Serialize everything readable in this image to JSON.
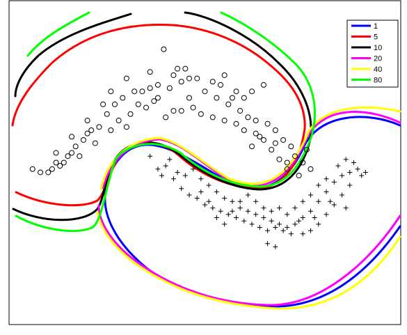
{
  "chart_data": {
    "type": "scatter",
    "title": "",
    "xlabel": "",
    "ylabel": "",
    "xlim": [
      0,
      1
    ],
    "ylim": [
      0,
      1
    ],
    "grid": false,
    "legend_position": "top-right",
    "legend": [
      {
        "name": "1",
        "color": "#0000ff"
      },
      {
        "name": "5",
        "color": "#ff0000"
      },
      {
        "name": "10",
        "color": "#000000"
      },
      {
        "name": "20",
        "color": "#ff00ff"
      },
      {
        "name": "40",
        "color": "#ffff00"
      },
      {
        "name": "80",
        "color": "#00ff00"
      }
    ],
    "points_circle": [
      [
        0.395,
        0.85
      ],
      [
        0.36,
        0.78
      ],
      [
        0.42,
        0.77
      ],
      [
        0.44,
        0.75
      ],
      [
        0.38,
        0.74
      ],
      [
        0.36,
        0.73
      ],
      [
        0.34,
        0.72
      ],
      [
        0.41,
        0.73
      ],
      [
        0.45,
        0.79
      ],
      [
        0.48,
        0.76
      ],
      [
        0.52,
        0.75
      ],
      [
        0.55,
        0.77
      ],
      [
        0.58,
        0.72
      ],
      [
        0.6,
        0.7
      ],
      [
        0.62,
        0.72
      ],
      [
        0.65,
        0.74
      ],
      [
        0.3,
        0.76
      ],
      [
        0.32,
        0.72
      ],
      [
        0.29,
        0.7
      ],
      [
        0.27,
        0.68
      ],
      [
        0.25,
        0.65
      ],
      [
        0.23,
        0.61
      ],
      [
        0.21,
        0.6
      ],
      [
        0.19,
        0.57
      ],
      [
        0.17,
        0.55
      ],
      [
        0.16,
        0.53
      ],
      [
        0.18,
        0.52
      ],
      [
        0.14,
        0.5
      ],
      [
        0.12,
        0.5
      ],
      [
        0.11,
        0.48
      ],
      [
        0.1,
        0.47
      ],
      [
        0.08,
        0.47
      ],
      [
        0.06,
        0.48
      ],
      [
        0.12,
        0.53
      ],
      [
        0.16,
        0.58
      ],
      [
        0.2,
        0.63
      ],
      [
        0.24,
        0.68
      ],
      [
        0.26,
        0.72
      ],
      [
        0.33,
        0.68
      ],
      [
        0.31,
        0.65
      ],
      [
        0.28,
        0.63
      ],
      [
        0.35,
        0.67
      ],
      [
        0.4,
        0.64
      ],
      [
        0.46,
        0.7
      ],
      [
        0.5,
        0.72
      ],
      [
        0.53,
        0.7
      ],
      [
        0.56,
        0.68
      ],
      [
        0.59,
        0.66
      ],
      [
        0.61,
        0.64
      ],
      [
        0.63,
        0.63
      ],
      [
        0.66,
        0.62
      ],
      [
        0.68,
        0.6
      ],
      [
        0.7,
        0.57
      ],
      [
        0.72,
        0.55
      ],
      [
        0.73,
        0.52
      ],
      [
        0.75,
        0.5
      ],
      [
        0.77,
        0.48
      ],
      [
        0.74,
        0.46
      ],
      [
        0.71,
        0.48
      ],
      [
        0.69,
        0.51
      ],
      [
        0.67,
        0.54
      ],
      [
        0.65,
        0.57
      ],
      [
        0.63,
        0.59
      ],
      [
        0.6,
        0.6
      ],
      [
        0.58,
        0.62
      ],
      [
        0.55,
        0.63
      ],
      [
        0.52,
        0.64
      ],
      [
        0.49,
        0.65
      ],
      [
        0.47,
        0.67
      ],
      [
        0.44,
        0.66
      ],
      [
        0.42,
        0.66
      ],
      [
        0.38,
        0.7
      ],
      [
        0.37,
        0.69
      ],
      [
        0.22,
        0.56
      ],
      [
        0.15,
        0.52
      ],
      [
        0.13,
        0.49
      ],
      [
        0.2,
        0.59
      ],
      [
        0.26,
        0.6
      ],
      [
        0.3,
        0.61
      ],
      [
        0.43,
        0.79
      ],
      [
        0.46,
        0.76
      ],
      [
        0.54,
        0.74
      ],
      [
        0.57,
        0.7
      ],
      [
        0.64,
        0.58
      ],
      [
        0.68,
        0.56
      ],
      [
        0.71,
        0.5
      ],
      [
        0.76,
        0.54
      ],
      [
        0.62,
        0.55
      ]
    ],
    "points_plus": [
      [
        0.36,
        0.52
      ],
      [
        0.38,
        0.48
      ],
      [
        0.41,
        0.51
      ],
      [
        0.43,
        0.47
      ],
      [
        0.45,
        0.46
      ],
      [
        0.47,
        0.48
      ],
      [
        0.49,
        0.45
      ],
      [
        0.51,
        0.43
      ],
      [
        0.53,
        0.41
      ],
      [
        0.55,
        0.39
      ],
      [
        0.57,
        0.38
      ],
      [
        0.59,
        0.36
      ],
      [
        0.61,
        0.35
      ],
      [
        0.63,
        0.34
      ],
      [
        0.65,
        0.33
      ],
      [
        0.67,
        0.32
      ],
      [
        0.69,
        0.31
      ],
      [
        0.71,
        0.3
      ],
      [
        0.73,
        0.31
      ],
      [
        0.75,
        0.33
      ],
      [
        0.77,
        0.35
      ],
      [
        0.79,
        0.38
      ],
      [
        0.81,
        0.41
      ],
      [
        0.83,
        0.44
      ],
      [
        0.85,
        0.46
      ],
      [
        0.87,
        0.47
      ],
      [
        0.89,
        0.48
      ],
      [
        0.91,
        0.47
      ],
      [
        0.87,
        0.43
      ],
      [
        0.85,
        0.4
      ],
      [
        0.83,
        0.37
      ],
      [
        0.81,
        0.34
      ],
      [
        0.79,
        0.31
      ],
      [
        0.77,
        0.29
      ],
      [
        0.75,
        0.28
      ],
      [
        0.72,
        0.28
      ],
      [
        0.7,
        0.29
      ],
      [
        0.68,
        0.3
      ],
      [
        0.66,
        0.29
      ],
      [
        0.64,
        0.3
      ],
      [
        0.62,
        0.31
      ],
      [
        0.6,
        0.32
      ],
      [
        0.58,
        0.33
      ],
      [
        0.56,
        0.34
      ],
      [
        0.54,
        0.35
      ],
      [
        0.52,
        0.36
      ],
      [
        0.5,
        0.37
      ],
      [
        0.48,
        0.39
      ],
      [
        0.46,
        0.4
      ],
      [
        0.44,
        0.42
      ],
      [
        0.42,
        0.45
      ],
      [
        0.4,
        0.49
      ],
      [
        0.39,
        0.46
      ],
      [
        0.49,
        0.41
      ],
      [
        0.51,
        0.38
      ],
      [
        0.53,
        0.33
      ],
      [
        0.55,
        0.31
      ],
      [
        0.57,
        0.35
      ],
      [
        0.59,
        0.38
      ],
      [
        0.61,
        0.4
      ],
      [
        0.63,
        0.38
      ],
      [
        0.65,
        0.36
      ],
      [
        0.67,
        0.35
      ],
      [
        0.69,
        0.36
      ],
      [
        0.71,
        0.34
      ],
      [
        0.73,
        0.36
      ],
      [
        0.75,
        0.38
      ],
      [
        0.77,
        0.4
      ],
      [
        0.79,
        0.43
      ],
      [
        0.81,
        0.45
      ],
      [
        0.84,
        0.49
      ],
      [
        0.86,
        0.51
      ],
      [
        0.88,
        0.5
      ],
      [
        0.9,
        0.46
      ],
      [
        0.86,
        0.36
      ],
      [
        0.82,
        0.38
      ],
      [
        0.78,
        0.33
      ],
      [
        0.74,
        0.32
      ],
      [
        0.66,
        0.25
      ],
      [
        0.68,
        0.24
      ]
    ]
  }
}
